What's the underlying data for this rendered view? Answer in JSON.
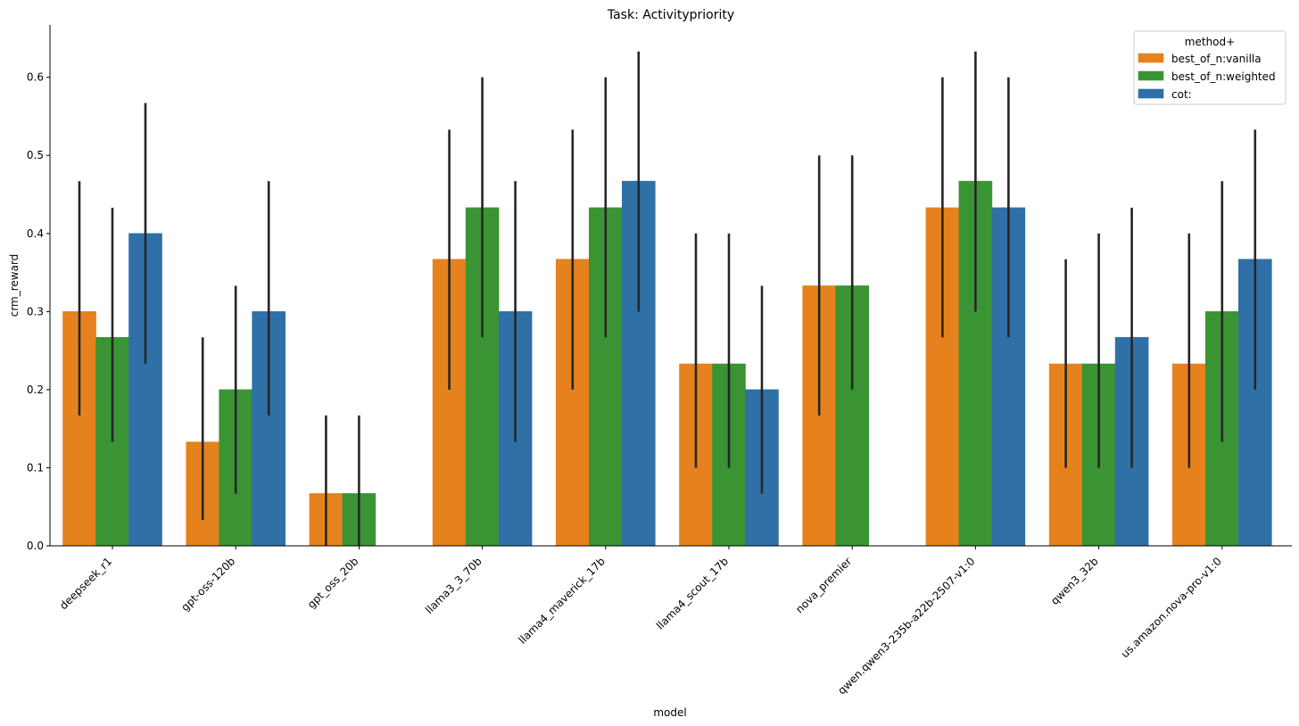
{
  "chart_data": {
    "type": "bar",
    "title": "Task: Activitypriority",
    "xlabel": "model",
    "ylabel": "crm_reward",
    "ylim": [
      0,
      0.667
    ],
    "yticks": [
      0.0,
      0.1,
      0.2,
      0.3,
      0.4,
      0.5,
      0.6
    ],
    "ytick_labels": [
      "0.0",
      "0.1",
      "0.2",
      "0.3",
      "0.4",
      "0.5",
      "0.6"
    ],
    "categories": [
      "deepseek_r1",
      "gpt-oss-120b",
      "gpt_oss_20b",
      "llama3_3_70b",
      "llama4_maverick_17b",
      "llama4_scout_17b",
      "nova_premier",
      "qwen.qwen3-235b-a22b-2507-v1:0",
      "qwen3_32b",
      "us.amazon.nova-pro-v1:0"
    ],
    "legend": {
      "title": "method+",
      "position": "top-right"
    },
    "series": [
      {
        "name": "best_of_n:vanilla",
        "color": "#e6821e",
        "values": [
          0.3,
          0.133,
          0.067,
          0.367,
          0.367,
          0.233,
          0.333,
          0.433,
          0.233,
          0.233
        ],
        "ci_low": [
          0.167,
          0.033,
          0.0,
          0.2,
          0.2,
          0.1,
          0.167,
          0.267,
          0.1,
          0.1
        ],
        "ci_high": [
          0.467,
          0.267,
          0.167,
          0.533,
          0.533,
          0.4,
          0.5,
          0.6,
          0.367,
          0.4
        ]
      },
      {
        "name": "best_of_n:weighted",
        "color": "#3a9434",
        "values": [
          0.267,
          0.2,
          0.067,
          0.433,
          0.433,
          0.233,
          0.333,
          0.467,
          0.233,
          0.3
        ],
        "ci_low": [
          0.133,
          0.067,
          0.0,
          0.267,
          0.267,
          0.1,
          0.2,
          0.3,
          0.1,
          0.133
        ],
        "ci_high": [
          0.433,
          0.333,
          0.167,
          0.6,
          0.6,
          0.4,
          0.5,
          0.633,
          0.4,
          0.467
        ]
      },
      {
        "name": "cot:",
        "color": "#2f70a7",
        "values": [
          0.4,
          0.3,
          null,
          0.3,
          0.467,
          0.2,
          null,
          0.433,
          0.267,
          0.367
        ],
        "ci_low": [
          0.233,
          0.167,
          null,
          0.133,
          0.3,
          0.067,
          null,
          0.267,
          0.1,
          0.2
        ],
        "ci_high": [
          0.567,
          0.467,
          null,
          0.467,
          0.633,
          0.333,
          null,
          0.6,
          0.433,
          0.533
        ]
      }
    ]
  }
}
